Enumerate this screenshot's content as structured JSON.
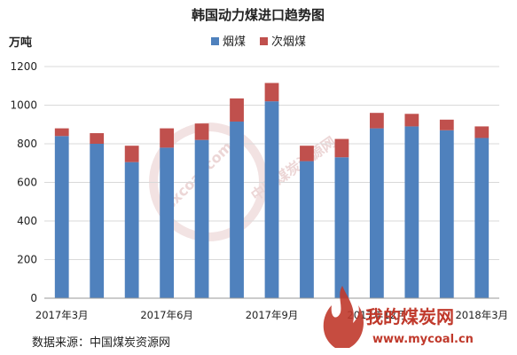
{
  "chart_data": {
    "type": "bar",
    "stacked": true,
    "title": "韩国动力煤进口趋势图",
    "ylabel": "万吨",
    "ylim": [
      0,
      1200
    ],
    "yticks": [
      0,
      200,
      400,
      600,
      800,
      1000,
      1200
    ],
    "grid": true,
    "legend_position": "top",
    "categories": [
      "2017年3月",
      "",
      "",
      "2017年6月",
      "",
      "",
      "2017年9月",
      "",
      "",
      "2017年12月",
      "",
      "",
      "2018年3月"
    ],
    "series": [
      {
        "name": "烟煤",
        "color": "#4f81bd",
        "values": [
          840,
          800,
          705,
          780,
          820,
          915,
          1020,
          710,
          730,
          880,
          890,
          870,
          830
        ]
      },
      {
        "name": "次烟煤",
        "color": "#c0504d",
        "values": [
          40,
          55,
          85,
          100,
          85,
          120,
          95,
          80,
          95,
          80,
          65,
          55,
          60
        ]
      }
    ]
  },
  "source_note": "数据来源：中国煤炭资源网",
  "watermark": {
    "text": "中国煤炭资源网",
    "url": "sxcoal.com"
  },
  "logo": {
    "text": "我的煤炭网",
    "url": "www.mycoal.cn"
  }
}
